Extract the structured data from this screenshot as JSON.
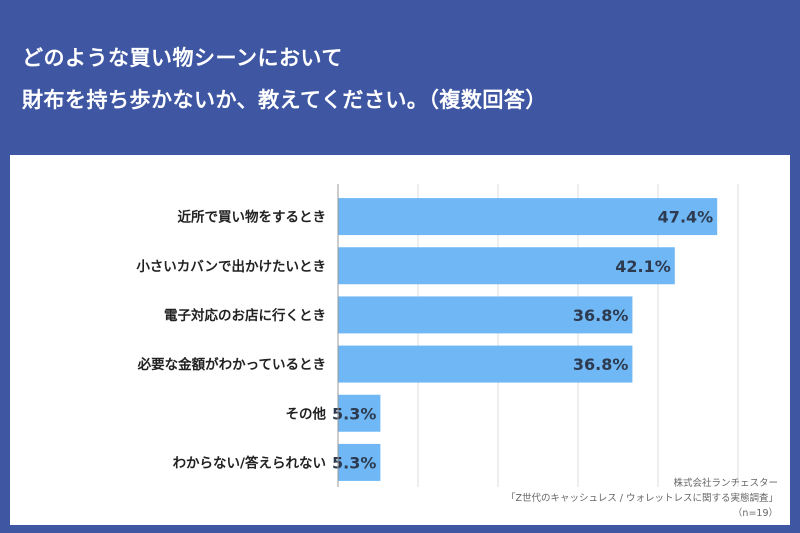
{
  "header": {
    "title_line1": "どのような買い物シーンにおいて",
    "title_line2": "財布を持ち歩かないか、教えてください。（複数回答）"
  },
  "footer": {
    "company": "株式会社ランチェスター",
    "survey": "「Z世代のキャッシュレス / ウォレットレスに関する実態調査」",
    "sample": "（n=19）"
  },
  "colors": {
    "background": "#3f57a3",
    "bar": "#6fb8f5",
    "value_text": "#2e3a4f",
    "label_text": "#222222"
  },
  "chart_data": {
    "type": "bar",
    "orientation": "horizontal",
    "categories": [
      "近所で買い物をするとき",
      "小さいカバンで出かけたいとき",
      "電子対応のお店に行くとき",
      "必要な金額がわかっているとき",
      "その他",
      "わからない/答えられない"
    ],
    "values": [
      47.4,
      42.1,
      36.8,
      36.8,
      5.3,
      5.3
    ],
    "value_labels": [
      "47.4%",
      "42.1%",
      "36.8%",
      "36.8%",
      "5.3%",
      "5.3%"
    ],
    "xlim": [
      0,
      50
    ],
    "grid": true
  }
}
